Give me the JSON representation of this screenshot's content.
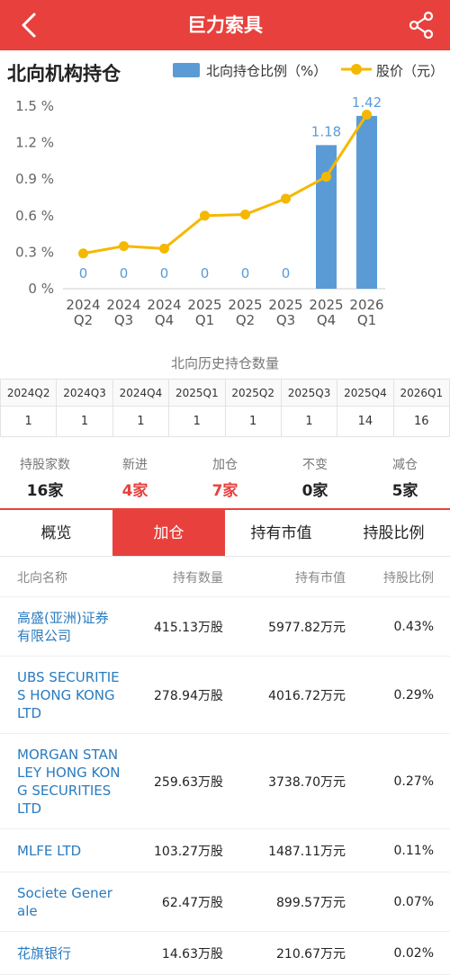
{
  "header": {
    "title": "巨力索具",
    "back_icon": "chevron-left-icon",
    "share_icon": "share-icon"
  },
  "section": {
    "title": "北向机构持仓"
  },
  "legend": {
    "bar_label": "北向持仓比例（%）",
    "line_label": "股价（元）"
  },
  "colors": {
    "brand": "#e8413d",
    "bar": "#5b9bd5",
    "line": "#f5b800",
    "link": "#2a7bbf"
  },
  "chart_data": {
    "type": "bar",
    "categories": [
      "2024 Q2",
      "2024 Q3",
      "2024 Q4",
      "2025 Q1",
      "2025 Q2",
      "2025 Q3",
      "2025 Q4",
      "2026 Q1"
    ],
    "category_lines": [
      [
        "2024",
        "Q2"
      ],
      [
        "2024",
        "Q3"
      ],
      [
        "2024",
        "Q4"
      ],
      [
        "2025",
        "Q1"
      ],
      [
        "2025",
        "Q2"
      ],
      [
        "2025",
        "Q3"
      ],
      [
        "2025",
        "Q4"
      ],
      [
        "2026",
        "Q1"
      ]
    ],
    "series": [
      {
        "name": "北向持仓比例（%）",
        "type": "bar",
        "values": [
          0,
          0,
          0,
          0,
          0,
          0,
          1.18,
          1.42
        ],
        "labels": [
          "0",
          "0",
          "0",
          "0",
          "0",
          "0",
          "1.18",
          "1.42"
        ]
      },
      {
        "name": "股价（元）",
        "type": "line",
        "values": [
          0.29,
          0.35,
          0.33,
          0.6,
          0.61,
          0.74,
          0.92,
          1.43
        ]
      }
    ],
    "yticks": [
      "0 %",
      "0.3 %",
      "0.6 %",
      "0.9 %",
      "1.2 %",
      "1.5 %"
    ],
    "ytick_values": [
      0,
      0.3,
      0.6,
      0.9,
      1.2,
      1.5
    ],
    "ylim": [
      0,
      1.5
    ],
    "grid": false,
    "legend_position": "top-right"
  },
  "history": {
    "title": "北向历史持仓数量",
    "quarters": [
      "2024Q2",
      "2024Q3",
      "2024Q4",
      "2025Q1",
      "2025Q2",
      "2025Q3",
      "2025Q4",
      "2026Q1"
    ],
    "counts": [
      "1",
      "1",
      "1",
      "1",
      "1",
      "1",
      "14",
      "16"
    ]
  },
  "stats": [
    {
      "label": "持股家数",
      "value": "16家",
      "highlight": false
    },
    {
      "label": "新进",
      "value": "4家",
      "highlight": true
    },
    {
      "label": "加仓",
      "value": "7家",
      "highlight": true
    },
    {
      "label": "不变",
      "value": "0家",
      "highlight": false
    },
    {
      "label": "减仓",
      "value": "5家",
      "highlight": false
    }
  ],
  "tabs": [
    {
      "label": "概览",
      "active": false
    },
    {
      "label": "加仓",
      "active": true
    },
    {
      "label": "持有市值",
      "active": false
    },
    {
      "label": "持股比例",
      "active": false
    }
  ],
  "table": {
    "headers": [
      "北向名称",
      "持有数量",
      "持有市值",
      "持股比例"
    ],
    "rows": [
      {
        "name": "高盛(亚洲)证券有限公司",
        "quantity": "415.13万股",
        "value": "5977.82万元",
        "ratio": "0.43%",
        "lines": 2
      },
      {
        "name": "UBS SECURITIES HONG KONG LTD",
        "quantity": "278.94万股",
        "value": "4016.72万元",
        "ratio": "0.29%",
        "lines": 3
      },
      {
        "name": "MORGAN STANLEY HONG KONG SECURITIES LTD",
        "quantity": "259.63万股",
        "value": "3738.70万元",
        "ratio": "0.27%",
        "lines": 4
      },
      {
        "name": "MLFE LTD",
        "quantity": "103.27万股",
        "value": "1487.11万元",
        "ratio": "0.11%",
        "lines": 1
      },
      {
        "name": "Societe Generale",
        "quantity": "62.47万股",
        "value": "899.57万元",
        "ratio": "0.07%",
        "lines": 2
      },
      {
        "name": "花旗银行",
        "quantity": "14.63万股",
        "value": "210.67万元",
        "ratio": "0.02%",
        "lines": 1
      }
    ]
  }
}
